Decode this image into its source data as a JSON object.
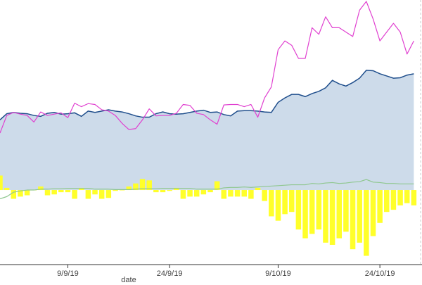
{
  "chart_data": {
    "type": "area",
    "xlabel": "date",
    "ylabel": "",
    "x_tick_labels": [
      "9/9/19",
      "24/9/19",
      "9/10/19",
      "24/10/19"
    ],
    "x_tick_positions": [
      10,
      25,
      41,
      56
    ],
    "x_range": [
      0,
      62
    ],
    "ylim": [
      -1.7,
      4.3
    ],
    "grid": false,
    "legend": "none",
    "colors": {
      "area_fill": "#cddbea",
      "area_line": "#1f4e8c",
      "magenta_line": "#e040d0",
      "bars": "#ffff2a",
      "green_line": "#8fc78f",
      "axis": "#333333",
      "dashed_edge": "#cccccc"
    },
    "series": [
      {
        "type": "area",
        "values": [
          1.6,
          1.74,
          1.77,
          1.75,
          1.74,
          1.7,
          1.68,
          1.75,
          1.77,
          1.73,
          1.74,
          1.76,
          1.68,
          1.8,
          1.77,
          1.8,
          1.83,
          1.8,
          1.78,
          1.74,
          1.69,
          1.66,
          1.66,
          1.74,
          1.78,
          1.74,
          1.73,
          1.74,
          1.77,
          1.8,
          1.82,
          1.77,
          1.78,
          1.72,
          1.69,
          1.8,
          1.81,
          1.81,
          1.8,
          1.78,
          1.77,
          2.0,
          2.1,
          2.18,
          2.18,
          2.13,
          2.2,
          2.25,
          2.33,
          2.5,
          2.42,
          2.37,
          2.45,
          2.55,
          2.73,
          2.72,
          2.65,
          2.6,
          2.55,
          2.56,
          2.62,
          2.65
        ]
      },
      {
        "type": "line",
        "values": [
          1.3,
          1.7,
          1.77,
          1.73,
          1.7,
          1.55,
          1.78,
          1.7,
          1.73,
          1.76,
          1.65,
          1.98,
          1.9,
          1.97,
          1.95,
          1.83,
          1.8,
          1.7,
          1.52,
          1.38,
          1.4,
          1.6,
          1.85,
          1.69,
          1.7,
          1.7,
          1.75,
          1.95,
          1.93,
          1.75,
          1.72,
          1.6,
          1.5,
          1.94,
          1.95,
          1.95,
          1.9,
          1.95,
          1.66,
          2.1,
          2.35,
          3.2,
          3.4,
          3.3,
          3.0,
          3.0,
          3.7,
          3.55,
          3.95,
          3.7,
          3.7,
          3.6,
          3.5,
          4.1,
          4.3,
          3.9,
          3.4,
          3.6,
          3.8,
          3.6,
          3.1,
          3.4
        ]
      },
      {
        "type": "bar",
        "values": [
          0.33,
          0.05,
          -0.2,
          -0.15,
          -0.12,
          0.0,
          0.08,
          -0.12,
          -0.1,
          -0.05,
          -0.05,
          -0.2,
          0.05,
          -0.2,
          -0.1,
          -0.2,
          -0.18,
          -0.02,
          0.0,
          0.08,
          0.15,
          0.25,
          0.22,
          -0.05,
          -0.05,
          -0.02,
          0.05,
          -0.2,
          -0.15,
          -0.15,
          -0.1,
          -0.05,
          0.2,
          -0.2,
          -0.15,
          -0.15,
          -0.15,
          -0.2,
          0.05,
          -0.25,
          -0.6,
          -0.7,
          -0.55,
          -0.5,
          -0.9,
          -1.1,
          -1.0,
          -0.9,
          -1.2,
          -1.25,
          -1.1,
          -0.95,
          -1.35,
          -1.2,
          -1.5,
          -1.05,
          -0.75,
          -0.5,
          -0.45,
          -0.35,
          -0.3,
          -0.35
        ]
      },
      {
        "type": "line",
        "values": [
          -0.2,
          -0.15,
          -0.05,
          -0.02,
          0.0,
          0.0,
          0.02,
          0.02,
          0.03,
          0.03,
          0.04,
          0.04,
          0.04,
          0.04,
          0.02,
          0.02,
          0.02,
          0.01,
          0.01,
          0.01,
          0.02,
          0.03,
          0.03,
          0.03,
          0.04,
          0.04,
          0.04,
          0.04,
          0.04,
          0.02,
          0.02,
          0.02,
          0.02,
          0.05,
          0.06,
          0.06,
          0.07,
          0.06,
          0.07,
          0.08,
          0.09,
          0.1,
          0.11,
          0.12,
          0.12,
          0.12,
          0.15,
          0.14,
          0.16,
          0.17,
          0.15,
          0.16,
          0.18,
          0.19,
          0.24,
          0.18,
          0.17,
          0.15,
          0.15,
          0.14,
          0.14,
          0.14
        ]
      }
    ]
  }
}
